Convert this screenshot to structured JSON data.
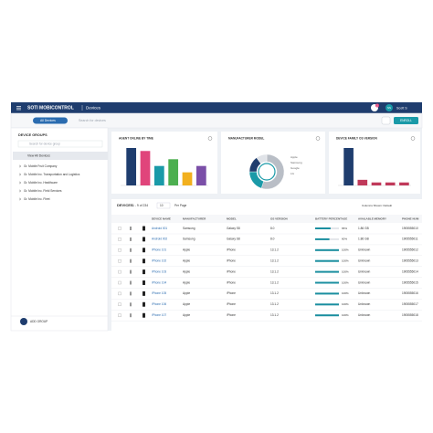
{
  "header": {
    "brand": "SOTI MOBICONTROL",
    "page": "Devices",
    "badge": "2",
    "initials": "SS",
    "user": "Scott S"
  },
  "toolbar": {
    "filter": "All Devices",
    "search_placeholder": "Search for devices",
    "enroll": "ENROLL"
  },
  "sidebar": {
    "title": "DEVICE GROUPS",
    "search_placeholder": "Search for device group",
    "selected": "View All Devices",
    "groups": [
      "Gr. Mobile Fruit Company",
      "Gr. Mobile Inc. Transportation and Logistics",
      "Gr. Mobile Inc. Healthcare",
      "Gr. Mobile Inc. Field Services",
      "Gr. Mobile Inc. Fleet"
    ],
    "add_group": "ADD GROUP"
  },
  "charts": [
    {
      "type": "bar",
      "title": "AGENT ONLINE BY TIME",
      "values": [
        100,
        92,
        52,
        70,
        35,
        52
      ],
      "colors": [
        "#1f3d6e",
        "#e0457b",
        "#1a9aa8",
        "#4caf50",
        "#f2b01e",
        "#7b4fa8"
      ],
      "ylim": [
        0,
        100
      ]
    },
    {
      "type": "pie",
      "title": "MANUFACTURER MODEL",
      "categories": [
        "Apple",
        "Samsung",
        "Google",
        "LG"
      ],
      "values": [
        55,
        20,
        15,
        10
      ],
      "colors": [
        "#b9bec6",
        "#1a9aa8",
        "#1f3d6e",
        "#e0e3e8"
      ]
    },
    {
      "type": "bar",
      "title": "DEVICE FAMILY OS VERSION",
      "values": [
        100,
        15,
        8,
        8,
        8
      ],
      "colors": [
        "#1f3d6e",
        "#c0395a",
        "#c0395a",
        "#c0395a",
        "#c0395a"
      ],
      "ylim": [
        0,
        100
      ]
    }
  ],
  "table": {
    "title": "DEVICES",
    "count": "1 - 9 of 234",
    "per_page": "10",
    "per_page_label": "Per Page",
    "columns_label": "Columns Shown: Default",
    "columns": [
      "DEVICE NAME",
      "MANUFACTURER",
      "MODEL",
      "OS VERSION",
      "BATTERY PERCENTAGE",
      "AVAILABLE MEMORY",
      "PHONE NUM"
    ],
    "rows": [
      {
        "name": "Android 001",
        "manufacturer": "Samsung",
        "model": "Galaxy S8",
        "os": "8.0",
        "battery": {
          "value": 65,
          "label": "65%"
        },
        "memory": "1.86 GB",
        "phone": "1905555010"
      },
      {
        "name": "Android 002",
        "manufacturer": "Samsung",
        "model": "Galaxy S8",
        "os": "8.0",
        "battery": {
          "value": 60,
          "label": "60%"
        },
        "memory": "1.86 GB",
        "phone": "1905555011"
      },
      {
        "name": "iPhone 101",
        "manufacturer": "Apple",
        "model": "iPhone",
        "os": "13.1.2",
        "battery": {
          "value": 100,
          "label": "100%"
        },
        "memory": "Unknown",
        "phone": "1905555012"
      },
      {
        "name": "iPhone 102",
        "manufacturer": "Apple",
        "model": "iPhone",
        "os": "13.1.2",
        "battery": {
          "value": 100,
          "label": "100%"
        },
        "memory": "Unknown",
        "phone": "1905555013"
      },
      {
        "name": "iPhone 103",
        "manufacturer": "Apple",
        "model": "iPhone",
        "os": "13.1.2",
        "battery": {
          "value": 100,
          "label": "100%"
        },
        "memory": "Unknown",
        "phone": "1905555014"
      },
      {
        "name": "iPhone 104",
        "manufacturer": "Apple",
        "model": "iPhone",
        "os": "13.1.2",
        "battery": {
          "value": 100,
          "label": "100%"
        },
        "memory": "Unknown",
        "phone": "1905555015"
      },
      {
        "name": "iPhone 105",
        "manufacturer": "Apple",
        "model": "iPhone",
        "os": "13.1.2",
        "battery": {
          "value": 100,
          "label": "100%"
        },
        "memory": "Unknown",
        "phone": "1905555016"
      },
      {
        "name": "iPhone 106",
        "manufacturer": "Apple",
        "model": "iPhone",
        "os": "13.1.2",
        "battery": {
          "value": 100,
          "label": "100%"
        },
        "memory": "Unknown",
        "phone": "1905555017"
      },
      {
        "name": "iPhone 107",
        "manufacturer": "Apple",
        "model": "iPhone",
        "os": "13.1.2",
        "battery": {
          "value": 100,
          "label": "100%"
        },
        "memory": "Unknown",
        "phone": "1905555018"
      }
    ]
  }
}
